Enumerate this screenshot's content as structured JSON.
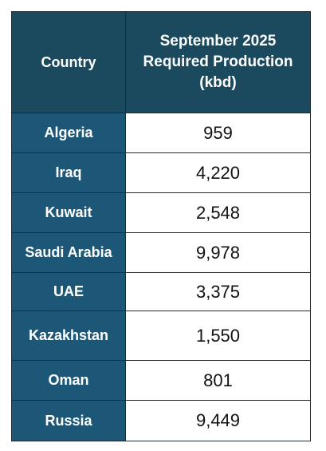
{
  "table": {
    "header": {
      "country": "Country",
      "production_lines": [
        "September 2025",
        "Required Production",
        "(kbd)"
      ]
    },
    "rows": [
      {
        "country": "Algeria",
        "value": "959"
      },
      {
        "country": "Iraq",
        "value": "4,220"
      },
      {
        "country": "Kuwait",
        "value": "2,548"
      },
      {
        "country": "Saudi Arabia",
        "value": "9,978"
      },
      {
        "country": "UAE",
        "value": "3,375"
      },
      {
        "country": "Kazakhstan",
        "value": "1,550"
      },
      {
        "country": "Oman",
        "value": "801"
      },
      {
        "country": "Russia",
        "value": "9,449"
      }
    ]
  },
  "colors": {
    "header_bg": "#1b4a5e",
    "country_cell_bg": "#1d5778",
    "value_cell_bg": "#ffffff",
    "border": "#1f2a33"
  }
}
